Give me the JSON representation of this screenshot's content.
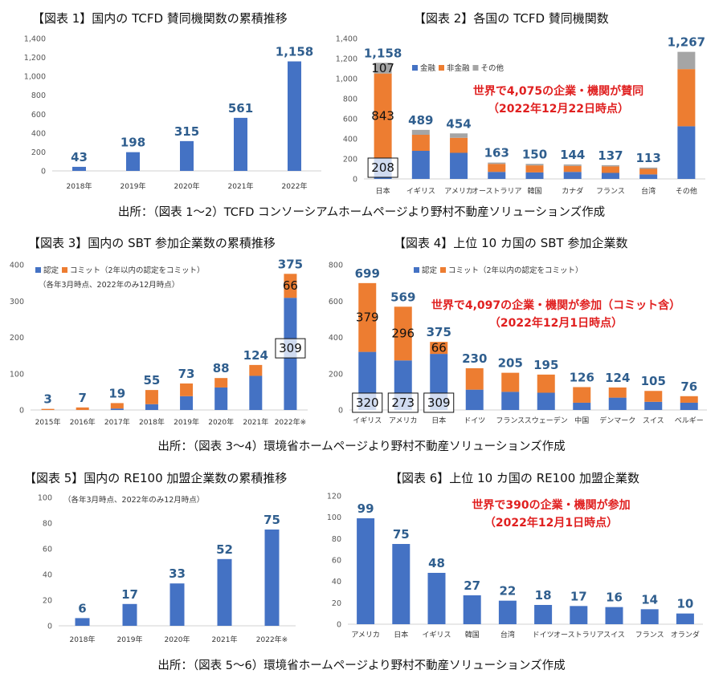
{
  "titles": [
    "【図表 1】国内の TCFD 賛同機関数の累積推移",
    "【図表 2】各国の TCFD 賛同機関数",
    "【図表 3】国内の SBT 参加企業数の累積推移",
    "【図表 4】上位 10 カ国の SBT 参加企業数",
    "【図表 5】国内の RE100 加盟企業数の累積推移",
    "【図表 6】上位 10 カ国の RE100 加盟企業数"
  ],
  "sources": [
    "出所：（図表 1～2）TCFD コンソーシアムホームページより野村不動産ソリューションズ作成",
    "出所：（図表 3～4）環境省ホームページより野村不動産ソリューションズ作成",
    "出所：（図表 5～6）環境省ホームページより野村不動産ソリューションズ作成"
  ],
  "colors": {
    "blue": "#4472c4",
    "orange": "#ed7d31",
    "gray": "#a5a5a5",
    "label": "#2f5e8e",
    "red": "#e02020"
  },
  "chart_data": [
    {
      "type": "bar",
      "categories": [
        "2018年",
        "2019年",
        "2020年",
        "2021年",
        "2022年"
      ],
      "values": [
        43,
        198,
        315,
        561,
        1158
      ],
      "ylim": [
        0,
        1400
      ],
      "yticks": [
        0,
        200,
        400,
        600,
        800,
        1000,
        1200,
        1400
      ],
      "yticklabels": [
        "0",
        "200",
        "400",
        "600",
        "800",
        "1,000",
        "1,200",
        "1,400"
      ],
      "total_labels": [
        "43",
        "198",
        "315",
        "561",
        "1,158"
      ]
    },
    {
      "type": "bar",
      "stacked": true,
      "categories": [
        "日本",
        "イギリス",
        "アメリカ",
        "オーストラリア",
        "韓国",
        "カナダ",
        "フランス",
        "台湾",
        "その他"
      ],
      "series": [
        {
          "name": "金融",
          "values": [
            208,
            280,
            260,
            70,
            65,
            70,
            60,
            45,
            525
          ]
        },
        {
          "name": "非金融",
          "values": [
            843,
            160,
            150,
            80,
            70,
            60,
            65,
            55,
            570
          ]
        },
        {
          "name": "その他",
          "values": [
            107,
            49,
            44,
            13,
            15,
            14,
            12,
            13,
            172
          ]
        }
      ],
      "ylim": [
        0,
        1400
      ],
      "yticks": [
        0,
        200,
        400,
        600,
        800,
        1000,
        1200,
        1400
      ],
      "yticklabels": [
        "0",
        "200",
        "400",
        "600",
        "800",
        "1,000",
        "1,200",
        "1,400"
      ],
      "total_labels": [
        "1,158",
        "489",
        "454",
        "163",
        "150",
        "144",
        "137",
        "113",
        "1,267"
      ],
      "inner_labels": [
        "208",
        "843",
        "107"
      ],
      "annotation": [
        "世界で4,075の企業・機関が賛同",
        "（2022年12月22日時点）"
      ]
    },
    {
      "type": "bar",
      "stacked": true,
      "categories": [
        "2015年",
        "2016年",
        "2017年",
        "2018年",
        "2019年",
        "2020年",
        "2021年",
        "2022年※"
      ],
      "series": [
        {
          "name": "認定",
          "values": [
            0,
            0,
            4,
            16,
            38,
            62,
            94,
            309
          ]
        },
        {
          "name": "コミット（2年以内の認定をコミット）",
          "values": [
            3,
            7,
            15,
            39,
            35,
            26,
            30,
            66
          ]
        }
      ],
      "ylim": [
        0,
        400
      ],
      "yticks": [
        0,
        100,
        200,
        300,
        400
      ],
      "yticklabels": [
        "0",
        "100",
        "200",
        "300",
        "400"
      ],
      "total_labels": [
        "3",
        "7",
        "19",
        "55",
        "73",
        "88",
        "124",
        "375"
      ],
      "inner_labels": [
        "309",
        "66"
      ],
      "note": "（各年3月時点、2022年のみ12月時点）"
    },
    {
      "type": "bar",
      "stacked": true,
      "categories": [
        "イギリス",
        "アメリカ",
        "日本",
        "ドイツ",
        "フランス",
        "スウェーデン",
        "中国",
        "デンマーク",
        "スイス",
        "ベルギー"
      ],
      "series": [
        {
          "name": "認定",
          "values": [
            320,
            273,
            309,
            112,
            100,
            95,
            40,
            68,
            45,
            40
          ]
        },
        {
          "name": "コミット（2年以内の認定をコミット）",
          "values": [
            379,
            296,
            66,
            118,
            105,
            100,
            86,
            56,
            60,
            36
          ]
        }
      ],
      "ylim": [
        0,
        800
      ],
      "yticks": [
        0,
        200,
        400,
        600,
        800
      ],
      "yticklabels": [
        "0",
        "200",
        "400",
        "600",
        "800"
      ],
      "total_labels": [
        "699",
        "569",
        "375",
        "230",
        "205",
        "195",
        "126",
        "124",
        "105",
        "76"
      ],
      "inner_labels": [
        "320",
        "379",
        "273",
        "296",
        "309",
        "66"
      ],
      "annotation": [
        "世界で4,097の企業・機関が参加（コミット含）",
        "（2022年12月1日時点）"
      ]
    },
    {
      "type": "bar",
      "categories": [
        "2018年",
        "2019年",
        "2020年",
        "2021年",
        "2022年※"
      ],
      "values": [
        6,
        17,
        33,
        52,
        75
      ],
      "ylim": [
        0,
        100
      ],
      "yticks": [
        0,
        20,
        40,
        60,
        80,
        100
      ],
      "yticklabels": [
        "0",
        "20",
        "40",
        "60",
        "80",
        "100"
      ],
      "total_labels": [
        "6",
        "17",
        "33",
        "52",
        "75"
      ],
      "note": "（各年3月時点、2022年のみ12月時点）"
    },
    {
      "type": "bar",
      "categories": [
        "アメリカ",
        "日本",
        "イギリス",
        "韓国",
        "台湾",
        "ドイツ",
        "オーストラリア",
        "スイス",
        "フランス",
        "オランダ"
      ],
      "values": [
        99,
        75,
        48,
        27,
        22,
        18,
        17,
        16,
        14,
        10
      ],
      "ylim": [
        0,
        120
      ],
      "yticks": [
        0,
        20,
        40,
        60,
        80,
        100,
        120
      ],
      "yticklabels": [
        "0",
        "20",
        "40",
        "60",
        "80",
        "100",
        "120"
      ],
      "total_labels": [
        "99",
        "75",
        "48",
        "27",
        "22",
        "18",
        "17",
        "16",
        "14",
        "10"
      ],
      "annotation": [
        "世界で390の企業・機関が参加",
        "（2022年12月1日時点）"
      ]
    }
  ]
}
